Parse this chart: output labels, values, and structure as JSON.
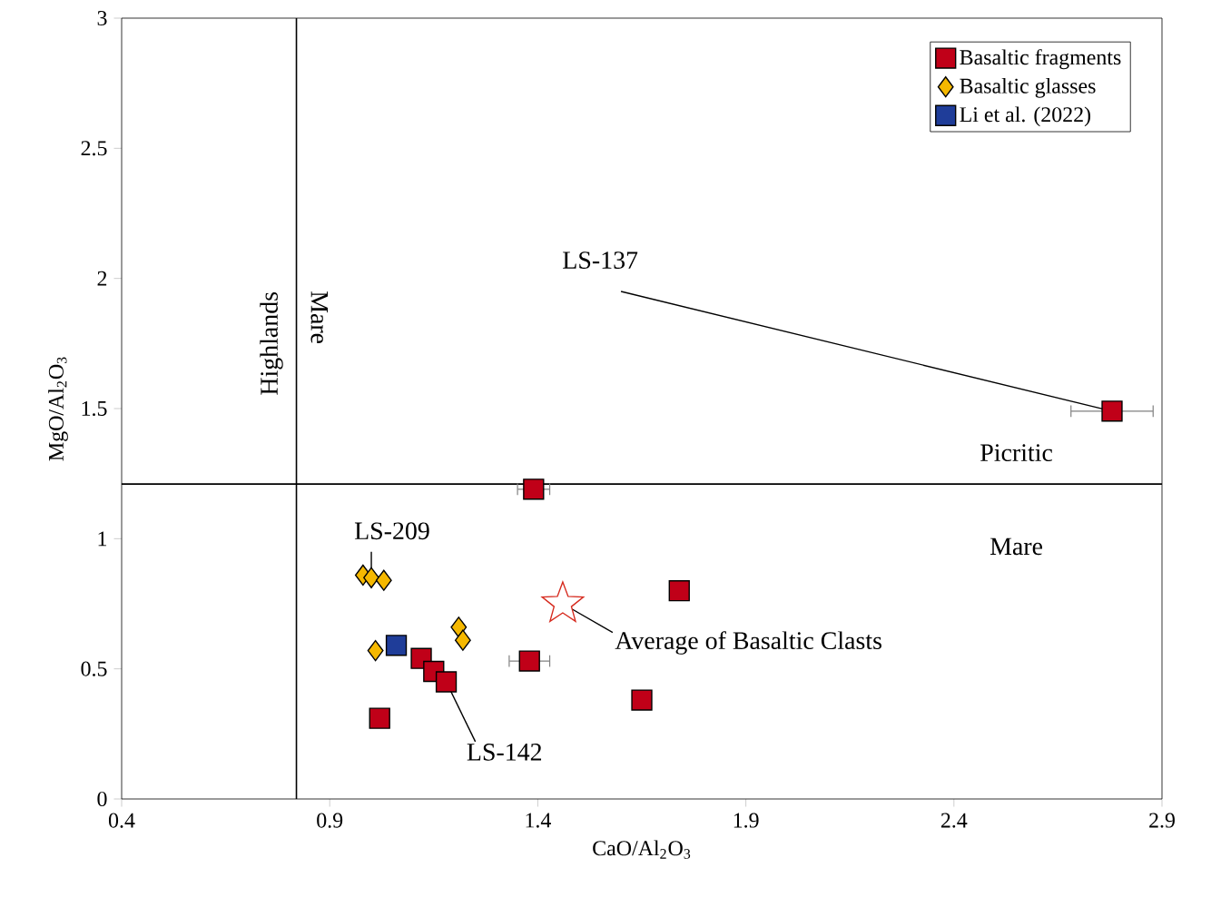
{
  "chart_data": {
    "type": "scatter",
    "xlabel": "CaO/Al$_{2}$O$_{3}$",
    "ylabel": "MgO/Al$_{2}$O$_{3}$",
    "xlim": [
      0.4,
      2.9
    ],
    "ylim": [
      0,
      3
    ],
    "xticks": [
      0.4,
      0.9,
      1.4,
      1.9,
      2.4,
      2.9
    ],
    "yticks": [
      0,
      0.5,
      1,
      1.5,
      2,
      2.5,
      3
    ],
    "legend": "top right",
    "grid": false,
    "series": [
      {
        "name": "Basaltic fragments",
        "color": "#c00018",
        "marker": "square",
        "x": [
          2.78,
          1.39,
          1.74,
          1.38,
          1.65,
          1.02,
          1.12,
          1.15,
          1.18
        ],
        "values": [
          1.49,
          1.19,
          0.8,
          0.53,
          0.38,
          0.31,
          0.54,
          0.49,
          0.45
        ],
        "xerrors": [
          0.1,
          0.04,
          null,
          0.05,
          null,
          null,
          null,
          null,
          null
        ]
      },
      {
        "name": "Basaltic glasses",
        "color": "#f5b800",
        "marker": "diamond",
        "x": [
          0.98,
          1.0,
          1.03,
          1.01,
          1.21,
          1.22
        ],
        "values": [
          0.86,
          0.85,
          0.84,
          0.57,
          0.66,
          0.61
        ]
      },
      {
        "name": "Li et al. (2022)",
        "color": "#1f3d99",
        "marker": "square",
        "x": [
          1.06
        ],
        "values": [
          0.59
        ]
      },
      {
        "color": "#d62a1e",
        "marker": "star",
        "x": [
          1.46
        ],
        "values": [
          0.75
        ]
      }
    ],
    "ref_lines": [
      {
        "axis": "x",
        "value": 0.82
      },
      {
        "axis": "y",
        "value": 1.21
      }
    ],
    "annotations": [
      "Highlands",
      "Mare",
      "Picritic",
      "Mare",
      {
        "text": "LS-137",
        "x": 2.78,
        "y": 1.49
      },
      {
        "text": "LS-209",
        "x": 1.0,
        "y": 0.86
      },
      {
        "text": "LS-142",
        "x": 1.18,
        "y": 0.45
      },
      {
        "text": "Average of Basaltic Clasts",
        "x": 1.46,
        "y": 0.75
      }
    ]
  }
}
